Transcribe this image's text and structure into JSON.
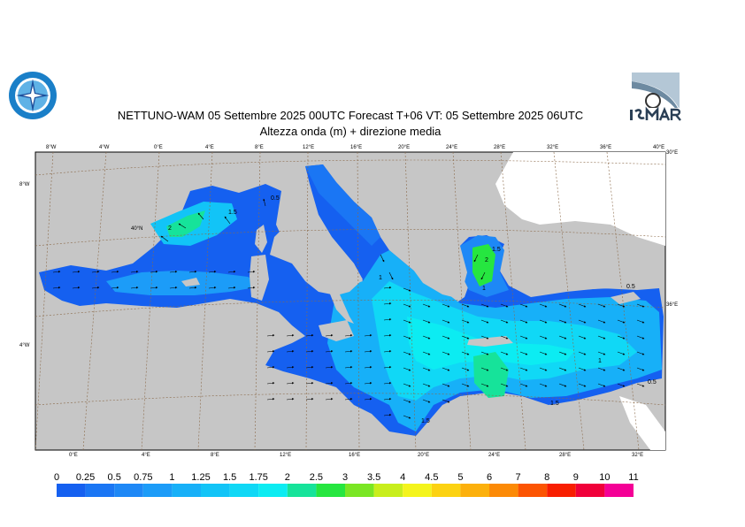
{
  "header": {
    "title": "NETTUNO-WAM  05 Settembre 2025 00UTC Forecast T+06 VT: 05 Settembre 2025 06UTC",
    "subtitle": "Altezza onda (m) + direzione media"
  },
  "logos": {
    "left": "Servizio Meteorologico Aeronautica Militare",
    "right": "ISMAR"
  },
  "map": {
    "top_ticks": [
      "8°W",
      "4°W",
      "0°E",
      "4°E",
      "8°E",
      "12°E",
      "16°E",
      "20°E",
      "24°E",
      "28°E",
      "32°E",
      "36°E",
      "40°E"
    ],
    "bottom_ticks": [
      "0°E",
      "4°E",
      "8°E",
      "12°E",
      "16°E",
      "20°E",
      "24°E",
      "28°E",
      "32°E"
    ],
    "left_ticks": [
      "8°W",
      "4°W"
    ],
    "right_ticks": [
      "30°E",
      "36°E"
    ],
    "lat_label": "40°N",
    "contour_labels": [
      "2",
      "1.5",
      "0.5",
      "1",
      "1",
      "2",
      "1.5",
      "1",
      "0.5",
      "1.5",
      "0.5",
      "1.5"
    ]
  },
  "legend": {
    "values": [
      "0",
      "0.25",
      "0.5",
      "0.75",
      "1",
      "1.25",
      "1.5",
      "1.75",
      "2",
      "2.5",
      "3",
      "3.5",
      "4",
      "4.5",
      "5",
      "6",
      "7",
      "8",
      "9",
      "10",
      "11"
    ],
    "colors": [
      "#1560f0",
      "#1a76f4",
      "#1e88f6",
      "#1c9cf8",
      "#17b0f8",
      "#12c4f7",
      "#10d8f6",
      "#0cecf2",
      "#16e39a",
      "#26e640",
      "#7ae624",
      "#c8ee1c",
      "#f4f41c",
      "#fcd212",
      "#fcb00c",
      "#fc8a06",
      "#fc5402",
      "#f81e00",
      "#f0003a",
      "#f40096"
    ]
  },
  "colors": {
    "land": "#c6c6c6",
    "sea_low": "#1560f0",
    "sea_mid": "#12c4f7",
    "sea_high": "#16e39a"
  }
}
